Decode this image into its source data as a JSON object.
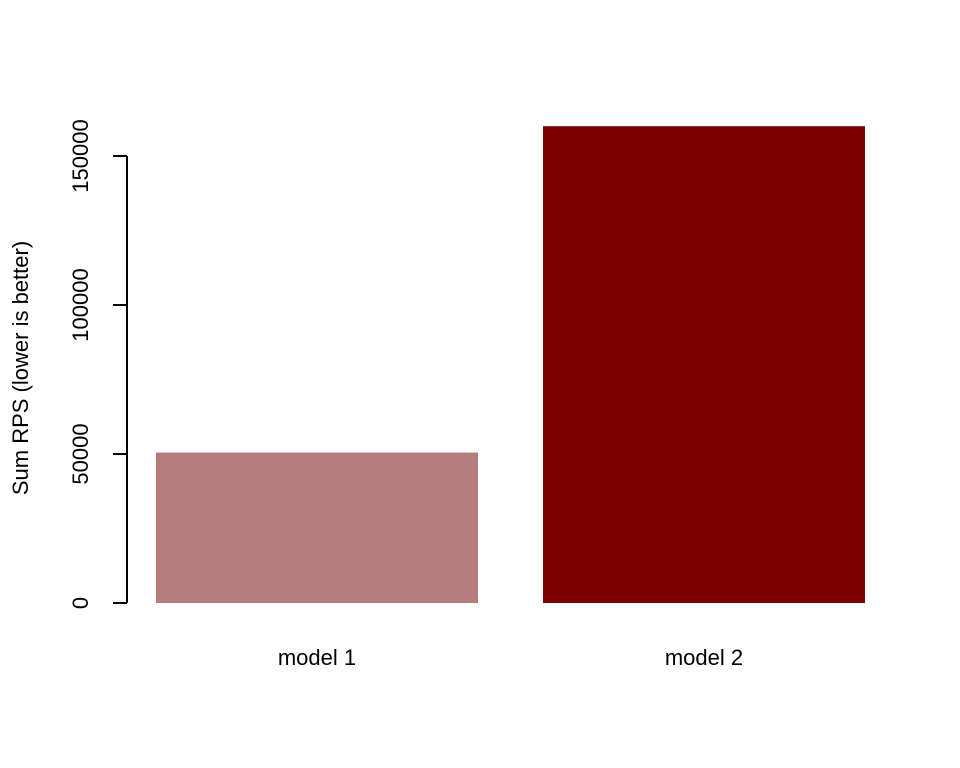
{
  "chart_data": {
    "type": "bar",
    "categories": [
      "model 1",
      "model 2"
    ],
    "values": [
      50500,
      160000
    ],
    "bar_colors": [
      "#b77d7c",
      "#7b0000"
    ],
    "ylabel": "Sum RPS (lower is better)",
    "xlabel": "",
    "ylim": [
      0,
      150000
    ],
    "yticks": [
      0,
      50000,
      100000,
      150000
    ],
    "ytick_labels": [
      "0",
      "50000",
      "100000",
      "150000"
    ],
    "grid": false
  }
}
